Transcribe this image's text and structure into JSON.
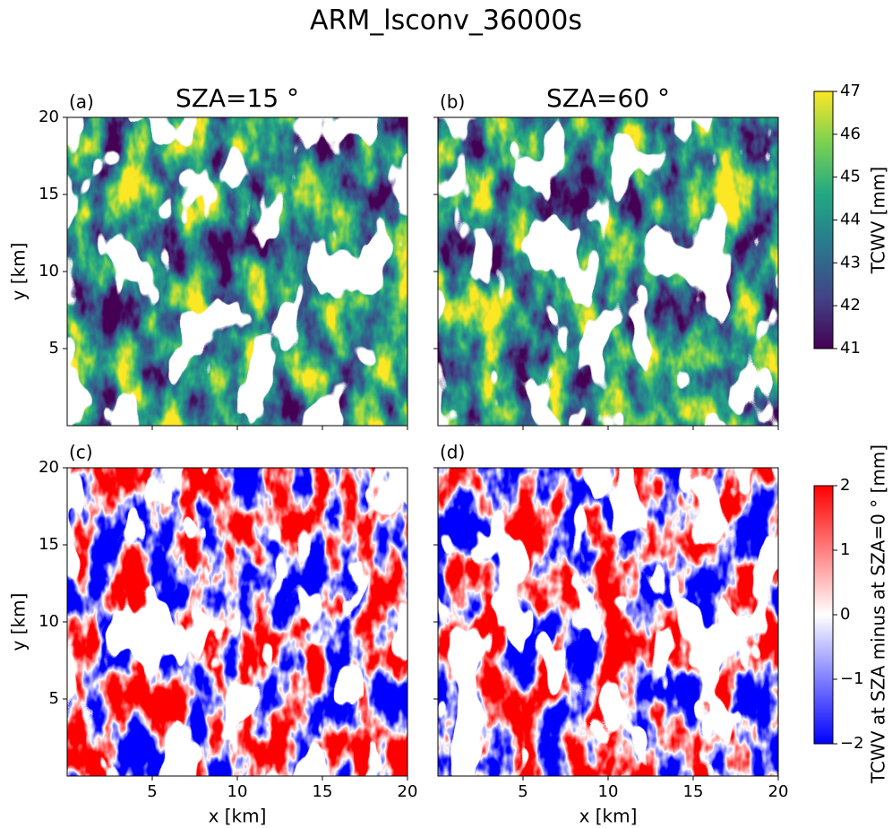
{
  "chart_data": {
    "type": "heatmap",
    "title": "ARM_lsconv_36000s",
    "xlabel": "x [km]",
    "ylabel": "y [km]",
    "xlim": [
      0,
      20
    ],
    "ylim": [
      0,
      20
    ],
    "xticks": [
      5,
      10,
      15,
      20
    ],
    "yticks": [
      5,
      10,
      15,
      20
    ],
    "rows": [
      {
        "colorbar": {
          "label": "TCWV [mm]",
          "lim": [
            41,
            47
          ],
          "ticks": [
            41,
            42,
            43,
            44,
            45,
            46,
            47
          ],
          "colors": [
            "#440154",
            "#414487",
            "#2a788e",
            "#22a884",
            "#7ad151",
            "#fde725"
          ]
        },
        "panels": [
          {
            "label": "(a)",
            "title": "SZA=15 °"
          },
          {
            "label": "(b)",
            "title": "SZA=60 °"
          }
        ]
      },
      {
        "colorbar": {
          "label": "TCWV at SZA minus at SZA=0 ° [mm]",
          "lim": [
            -2,
            2
          ],
          "ticks": [
            {
              "value": -2,
              "label": "−2"
            },
            {
              "value": -1,
              "label": "−1"
            },
            0,
            1,
            2
          ],
          "colors": [
            "#0000ff",
            "#ffffff",
            "#ff0000"
          ]
        },
        "panels": [
          {
            "label": "(c)"
          },
          {
            "label": "(d)"
          }
        ]
      }
    ]
  }
}
